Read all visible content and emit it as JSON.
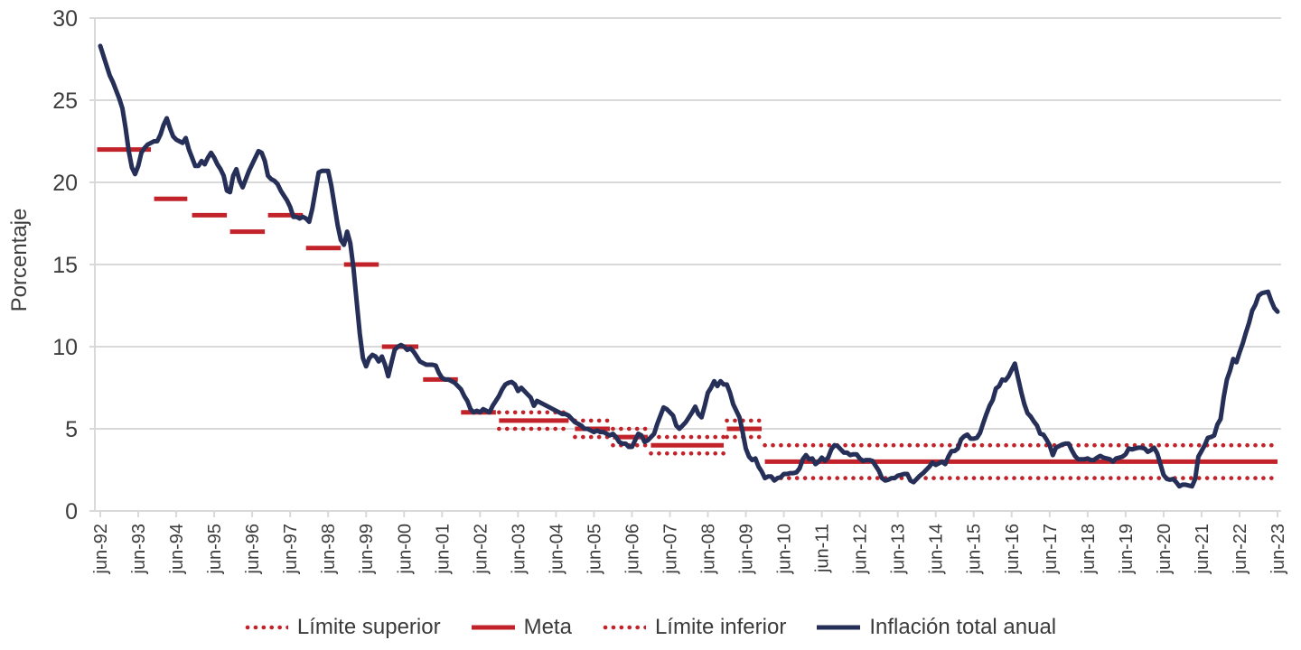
{
  "chart_data": {
    "type": "line",
    "title": "",
    "ylabel": "Porcentaje",
    "ylim": [
      0,
      30
    ],
    "yticks": [
      0,
      5,
      10,
      15,
      20,
      25,
      30
    ],
    "grid": true,
    "legend_position": "bottom",
    "x_tick_labels": [
      "jun-92",
      "jun-93",
      "jun-94",
      "jun-95",
      "jun-96",
      "jun-97",
      "jun-98",
      "jun-99",
      "jun-00",
      "jun-01",
      "jun-02",
      "jun-03",
      "jun-04",
      "jun-05",
      "jun-06",
      "jun-07",
      "jun-08",
      "jun-09",
      "jun-10",
      "jun-11",
      "jun-12",
      "jun-13",
      "jun-14",
      "jun-15",
      "jun-16",
      "jun-17",
      "jun-18",
      "jun-19",
      "jun-20",
      "jun-21",
      "jun-22",
      "jun-23"
    ],
    "months_per_tick": 12,
    "colors": {
      "meta": "#c2232a",
      "limits": "#c2232a",
      "inflation": "#262f58",
      "grid": "#d9d9d9",
      "axis_text": "#3d3d3d"
    },
    "series": [
      {
        "name": "Inflación total anual",
        "color": "#262f58",
        "start_label": "jun-92",
        "monthly_values": [
          28.3,
          27.7,
          27.1,
          26.5,
          26.1,
          25.6,
          25.1,
          24.5,
          23.3,
          21.9,
          20.9,
          20.5,
          21.0,
          21.8,
          22.1,
          22.3,
          22.4,
          22.5,
          22.5,
          22.9,
          23.5,
          23.9,
          23.3,
          22.8,
          22.6,
          22.5,
          22.4,
          22.7,
          22.0,
          21.5,
          21.0,
          21.0,
          21.3,
          21.1,
          21.5,
          21.8,
          21.5,
          21.1,
          20.8,
          20.4,
          19.5,
          19.4,
          20.4,
          20.8,
          20.1,
          19.7,
          20.2,
          20.7,
          21.1,
          21.5,
          21.9,
          21.8,
          21.3,
          20.4,
          20.2,
          20.1,
          19.9,
          19.5,
          19.2,
          18.9,
          18.5,
          17.9,
          17.9,
          17.8,
          17.9,
          17.8,
          17.6,
          18.4,
          19.5,
          20.6,
          20.7,
          20.7,
          20.7,
          19.8,
          18.6,
          17.4,
          16.5,
          16.2,
          17.0,
          16.3,
          14.8,
          12.8,
          10.8,
          9.3,
          8.8,
          9.3,
          9.5,
          9.4,
          9.1,
          9.4,
          8.9,
          8.2,
          9.0,
          9.8,
          10.0,
          10.1,
          10.0,
          9.8,
          9.9,
          9.7,
          9.4,
          9.1,
          9.0,
          8.9,
          8.9,
          8.9,
          8.85,
          8.4,
          8.1,
          8.0,
          8.0,
          7.9,
          7.8,
          7.6,
          7.4,
          7.0,
          6.7,
          6.2,
          6.0,
          6.1,
          6.0,
          6.2,
          6.1,
          6.0,
          6.4,
          6.7,
          7.0,
          7.4,
          7.7,
          7.8,
          7.85,
          7.7,
          7.3,
          7.5,
          7.3,
          7.1,
          6.9,
          6.4,
          6.7,
          6.6,
          6.5,
          6.4,
          6.3,
          6.2,
          6.1,
          6.0,
          5.9,
          5.9,
          5.8,
          5.6,
          5.4,
          5.3,
          5.2,
          5.0,
          5.0,
          4.9,
          4.8,
          4.9,
          4.8,
          4.8,
          4.7,
          4.6,
          4.7,
          4.5,
          4.2,
          4.1,
          4.1,
          3.9,
          3.9,
          4.3,
          4.7,
          4.6,
          4.2,
          4.3,
          4.5,
          4.7,
          5.3,
          5.8,
          6.3,
          6.2,
          6.0,
          5.8,
          5.2,
          5.0,
          5.2,
          5.4,
          5.7,
          6.0,
          6.35,
          5.9,
          5.7,
          6.4,
          7.2,
          7.5,
          7.9,
          7.6,
          7.9,
          7.7,
          7.7,
          7.2,
          6.5,
          6.1,
          5.7,
          4.8,
          3.8,
          3.3,
          3.1,
          3.2,
          2.7,
          2.4,
          2.0,
          2.1,
          2.1,
          1.85,
          2.0,
          2.05,
          2.25,
          2.25,
          2.3,
          2.3,
          2.35,
          2.6,
          3.15,
          3.4,
          3.15,
          3.2,
          2.85,
          3.0,
          3.25,
          3.05,
          3.25,
          3.75,
          4.0,
          3.95,
          3.75,
          3.55,
          3.55,
          3.4,
          3.45,
          3.45,
          3.2,
          3.05,
          3.1,
          3.1,
          3.05,
          2.75,
          2.45,
          2.0,
          1.85,
          1.9,
          2.0,
          2.0,
          2.15,
          2.2,
          2.25,
          2.25,
          1.85,
          1.75,
          1.95,
          2.15,
          2.3,
          2.5,
          2.7,
          2.95,
          2.8,
          2.9,
          3.0,
          2.85,
          3.3,
          3.65,
          3.65,
          3.8,
          4.35,
          4.55,
          4.65,
          4.4,
          4.4,
          4.45,
          4.75,
          5.35,
          5.9,
          6.4,
          6.75,
          7.45,
          7.6,
          8.0,
          7.95,
          8.2,
          8.6,
          8.97,
          8.1,
          7.25,
          6.5,
          5.95,
          5.75,
          5.45,
          5.2,
          4.7,
          4.65,
          4.35,
          4.0,
          3.4,
          3.85,
          3.95,
          4.05,
          4.1,
          4.1,
          3.7,
          3.35,
          3.15,
          3.15,
          3.15,
          3.2,
          3.1,
          3.1,
          3.25,
          3.35,
          3.25,
          3.2,
          3.15,
          3.0,
          3.2,
          3.25,
          3.3,
          3.45,
          3.8,
          3.75,
          3.8,
          3.85,
          3.85,
          3.8,
          3.6,
          3.7,
          3.85,
          3.5,
          2.85,
          2.2,
          1.95,
          1.9,
          1.95,
          1.75,
          1.5,
          1.6,
          1.6,
          1.55,
          1.5,
          1.95,
          3.3,
          3.65,
          4.0,
          4.45,
          4.5,
          4.6,
          5.25,
          5.6,
          6.95,
          8.0,
          8.55,
          9.25,
          9.05,
          9.65,
          10.2,
          10.85,
          11.45,
          12.2,
          12.55,
          13.1,
          13.25,
          13.3,
          13.34,
          12.8,
          12.35,
          12.13
        ]
      }
    ],
    "meta_segments": [
      {
        "from_month": -1,
        "to_month": 16,
        "value": 22
      },
      {
        "from_month": 17,
        "to_month": 27.5,
        "value": 19
      },
      {
        "from_month": 29,
        "to_month": 40,
        "value": 18
      },
      {
        "from_month": 41,
        "to_month": 52,
        "value": 17
      },
      {
        "from_month": 53,
        "to_month": 64,
        "value": 18
      },
      {
        "from_month": 65,
        "to_month": 76,
        "value": 16
      },
      {
        "from_month": 77,
        "to_month": 88,
        "value": 15
      },
      {
        "from_month": 89,
        "to_month": 100.5,
        "value": 10
      },
      {
        "from_month": 102,
        "to_month": 113,
        "value": 8
      },
      {
        "from_month": 114,
        "to_month": 125,
        "value": 6
      },
      {
        "from_month": 126,
        "to_month": 148,
        "value": 5.5
      },
      {
        "from_month": 150,
        "to_month": 161,
        "value": 5
      },
      {
        "from_month": 162,
        "to_month": 173,
        "value": 4.5
      },
      {
        "from_month": 174,
        "to_month": 197,
        "value": 4
      },
      {
        "from_month": 198,
        "to_month": 209,
        "value": 5
      },
      {
        "from_month": 210,
        "to_month": 372,
        "value": 3
      }
    ],
    "limit_bands": [
      {
        "from_month": 126,
        "to_month": 148,
        "upper": 6,
        "lower": 5
      },
      {
        "from_month": 150,
        "to_month": 161,
        "upper": 5.5,
        "lower": 4.5
      },
      {
        "from_month": 162,
        "to_month": 173,
        "upper": 5,
        "lower": 4
      },
      {
        "from_month": 174,
        "to_month": 197,
        "upper": 4.5,
        "lower": 3.5
      },
      {
        "from_month": 198,
        "to_month": 209,
        "upper": 5.5,
        "lower": 4.5
      },
      {
        "from_month": 210,
        "to_month": 372,
        "upper": 4,
        "lower": 2
      }
    ]
  },
  "legend": {
    "upper_label": "Límite superior",
    "meta_label": "Meta",
    "lower_label": "Límite inferior",
    "inflation_label": "Inflación total anual"
  }
}
